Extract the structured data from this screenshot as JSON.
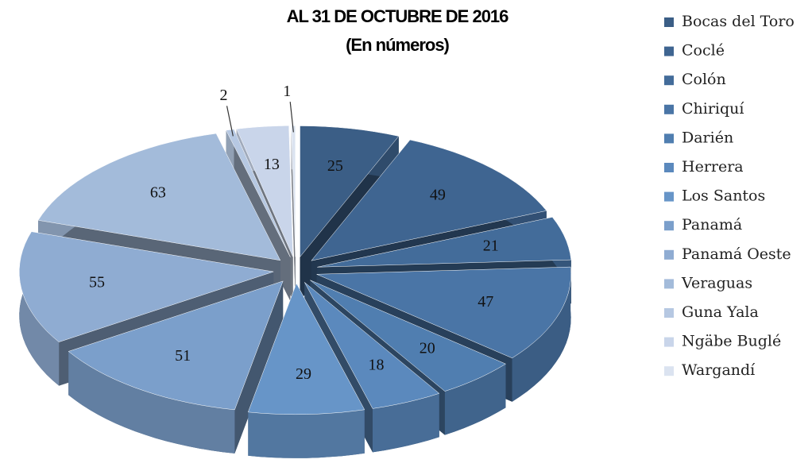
{
  "chart_data": {
    "type": "pie",
    "title": "AL 31 DE OCTUBRE DE 2016",
    "subtitle": "(En números)",
    "categories": [
      "Bocas del Toro",
      "Coclé",
      "Colón",
      "Chiriquí",
      "Darién",
      "Herrera",
      "Los Santos",
      "Panamá",
      "Panamá Oeste",
      "Veraguas",
      "Guna Yala",
      "Ngäbe Buglé",
      "Wargandí"
    ],
    "values": [
      25,
      49,
      21,
      47,
      20,
      18,
      29,
      51,
      55,
      63,
      2,
      13,
      1
    ],
    "colors": [
      "#3b5e86",
      "#3f6591",
      "#436c9a",
      "#4a75a6",
      "#507eb0",
      "#5b89bd",
      "#6795c8",
      "#7b9fcb",
      "#8facd2",
      "#a3bbda",
      "#b6c8e2",
      "#c9d5ea",
      "#dbe3f0"
    ],
    "legend": "right"
  }
}
